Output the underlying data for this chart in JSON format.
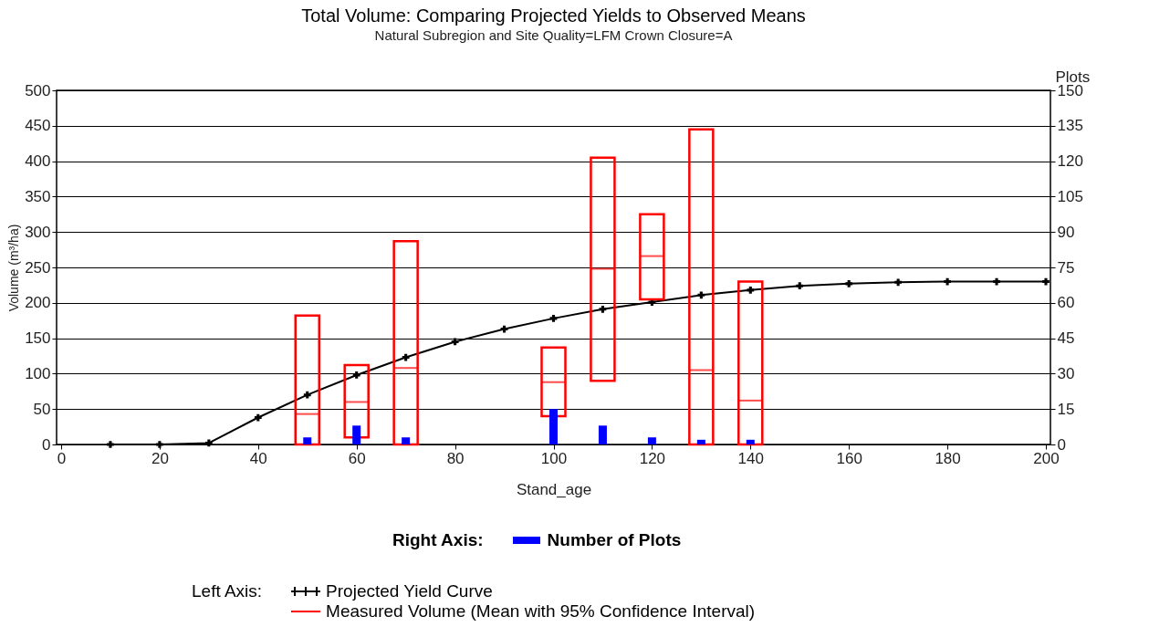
{
  "chart_data": {
    "type": "line",
    "title": "Total Volume: Comparing Projected Yields to Observed Means",
    "subtitle": "Natural Subregion and Site Quality=LFM      Crown Closure=A",
    "xlabel": "Stand_age",
    "ylabel": "Volume (m³/ha)",
    "y2label": "Plots",
    "xlim": [
      0,
      200
    ],
    "xticks": [
      0,
      20,
      40,
      60,
      80,
      100,
      120,
      140,
      160,
      180,
      200
    ],
    "ylim": [
      0,
      500
    ],
    "yticks": [
      0,
      50,
      100,
      150,
      200,
      250,
      300,
      350,
      400,
      450,
      500
    ],
    "y2lim": [
      0,
      150
    ],
    "y2ticks": [
      0,
      15,
      30,
      45,
      60,
      75,
      90,
      105,
      120,
      135,
      150
    ],
    "grid": "y",
    "legend": "bottom",
    "annotations": [
      "Right Axis:",
      "Left Axis:"
    ],
    "series": [
      {
        "name": "Number of Plots",
        "type": "bar",
        "axis": "y2",
        "color": "#0000ff",
        "x": [
          50,
          60,
          70,
          100,
          110,
          120,
          130,
          140
        ],
        "values": [
          3,
          8,
          3,
          15,
          8,
          3,
          2,
          2
        ]
      },
      {
        "name": "Projected Yield Curve",
        "marker": "cross",
        "color": "#000000",
        "x": [
          10,
          20,
          30,
          40,
          50,
          60,
          70,
          80,
          90,
          100,
          110,
          120,
          130,
          140,
          150,
          160,
          170,
          180,
          190,
          200
        ],
        "values": [
          0,
          0,
          2,
          38,
          70,
          98,
          123,
          145,
          163,
          178,
          191,
          201,
          211,
          218,
          224,
          227,
          229,
          230,
          230,
          230
        ]
      },
      {
        "name": "Measured Volume (Mean with 95% Confidence Interval)",
        "type": "box",
        "color": "#ff0000",
        "x": [
          50,
          60,
          70,
          100,
          110,
          120,
          130,
          140
        ],
        "boxes": [
          {
            "low": 0,
            "q1": 0,
            "median": 43,
            "q3": 182,
            "high": 182
          },
          {
            "low": 10,
            "q1": 10,
            "median": 60,
            "q3": 112,
            "high": 112
          },
          {
            "low": 0,
            "q1": 0,
            "median": 108,
            "q3": 287,
            "high": 287
          },
          {
            "low": 40,
            "q1": 40,
            "median": 88,
            "q3": 137,
            "high": 137
          },
          {
            "low": 90,
            "q1": 90,
            "median": 248,
            "q3": 405,
            "high": 405
          },
          {
            "low": 205,
            "q1": 205,
            "median": 266,
            "q3": 325,
            "high": 325
          },
          {
            "low": 0,
            "q1": 0,
            "median": 105,
            "q3": 445,
            "high": 445
          },
          {
            "low": 0,
            "q1": 0,
            "median": 62,
            "q3": 230,
            "high": 230
          }
        ]
      }
    ]
  }
}
